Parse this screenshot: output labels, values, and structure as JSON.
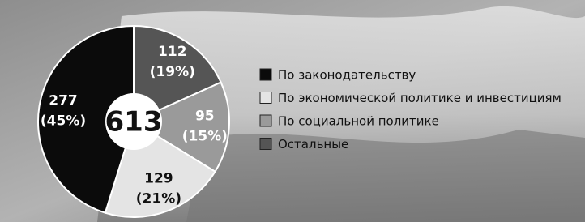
{
  "chart_data": {
    "type": "pie",
    "total": 613,
    "categories": [
      "По законодательству",
      "По экономической политике и инвестициям",
      "По социальной политике",
      "Остальные"
    ],
    "values": [
      277,
      129,
      95,
      112
    ],
    "percentages": [
      45,
      21,
      15,
      19
    ],
    "percentage_labels": [
      "(45%)",
      "(21%)",
      "(15%)",
      "(19%)"
    ],
    "colors": [
      "#0b0b0b",
      "#e4e4e4",
      "#9a9a9a",
      "#555555"
    ],
    "legend": "right"
  }
}
